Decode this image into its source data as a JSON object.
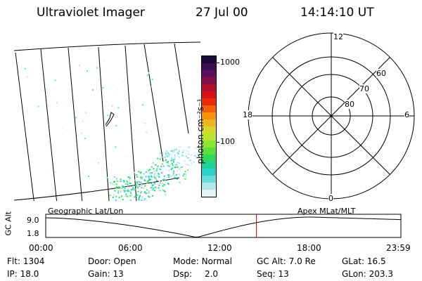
{
  "header": {
    "title": "Ultraviolet Imager",
    "date": "27 Jul 00",
    "time": "14:14:10 UT"
  },
  "colorbar": {
    "unit_label": "photon cm⁻²s⁻¹",
    "ticks": [
      "1000",
      "100"
    ],
    "colors": [
      "#1a0a3a",
      "#3a0d55",
      "#5c1060",
      "#84104a",
      "#b0102c",
      "#d8101a",
      "#ee2a0a",
      "#f5600a",
      "#f8900a",
      "#f0b41c",
      "#d8d82a",
      "#b8e62a",
      "#8ce630",
      "#5ae03a",
      "#2ed85a",
      "#1cd49a",
      "#2ad0cc",
      "#68dde0",
      "#b0e8ec",
      "#e6f4f4"
    ]
  },
  "left_panel": {
    "label": "Geographic Lat/Lon"
  },
  "polar_plot": {
    "label": "Apex MLat/MLT",
    "mlt_labels": {
      "top": "12",
      "left": "18",
      "right": "6",
      "bottom": "0"
    },
    "lat_labels": [
      "60",
      "70",
      "80"
    ]
  },
  "timeline": {
    "axis_label": "GC Alt",
    "y_ticks": [
      "9.0",
      "1.8"
    ],
    "x_ticks": [
      "00:00",
      "06:00",
      "12:00",
      "18:00",
      "23:59"
    ],
    "marker_hour": 14.236,
    "line_color": "#e00000"
  },
  "info": {
    "row1": [
      {
        "label": "Flt:",
        "value": "1304"
      },
      {
        "label": "Door:",
        "value": "Open"
      },
      {
        "label": "Mode:",
        "value": "Normal"
      },
      {
        "label": "GC Alt:",
        "value": "7.0 Re"
      },
      {
        "label": "GLat:",
        "value": "16.5"
      }
    ],
    "row2": [
      {
        "label": "IP:",
        "value": "18.0"
      },
      {
        "label": "Gain:",
        "value": "13"
      },
      {
        "label": "Dsp:",
        "value": "2.0"
      },
      {
        "label": "Seq:",
        "value": "13"
      },
      {
        "label": "GLon:",
        "value": "203.3"
      }
    ]
  }
}
